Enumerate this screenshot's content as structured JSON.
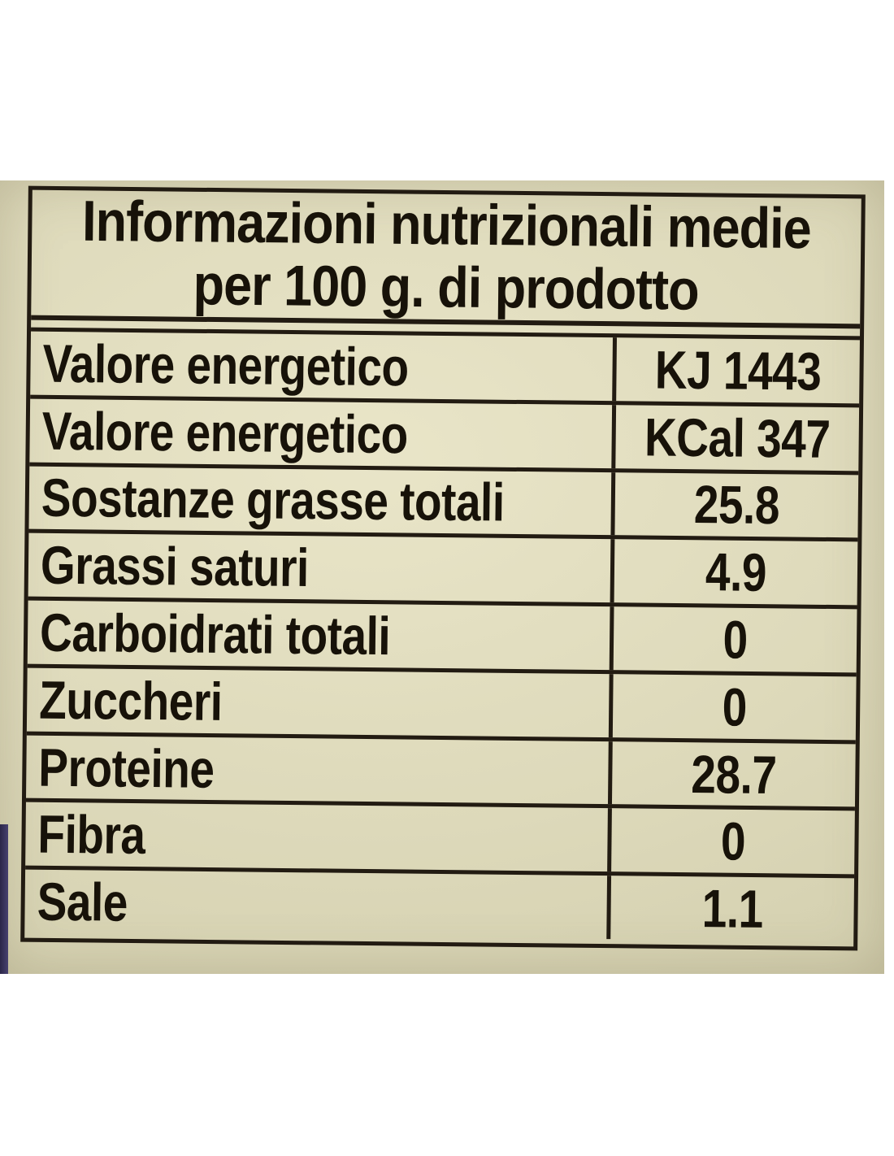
{
  "label": {
    "title": {
      "line1": "Informazioni nutrizionali medie",
      "line2": "per 100 g. di prodotto"
    },
    "rows": [
      {
        "label": "Valore energetico",
        "value": "KJ 1443"
      },
      {
        "label": "Valore energetico",
        "value": "KCal 347"
      },
      {
        "label": "Sostanze grasse totali",
        "value": "25.8"
      },
      {
        "label": "Grassi saturi",
        "value": "4.9"
      },
      {
        "label": "Carboidrati totali",
        "value": "0"
      },
      {
        "label": "Zuccheri",
        "value": "0"
      },
      {
        "label": "Proteine",
        "value": "28.7"
      },
      {
        "label": "Fibra",
        "value": "0"
      },
      {
        "label": "Sale",
        "value": "1.1"
      }
    ],
    "colors": {
      "paper": "#ddd9ba",
      "ink": "#221b12",
      "jar_edge": "#3f3965",
      "page_background": "#ffffff"
    }
  }
}
